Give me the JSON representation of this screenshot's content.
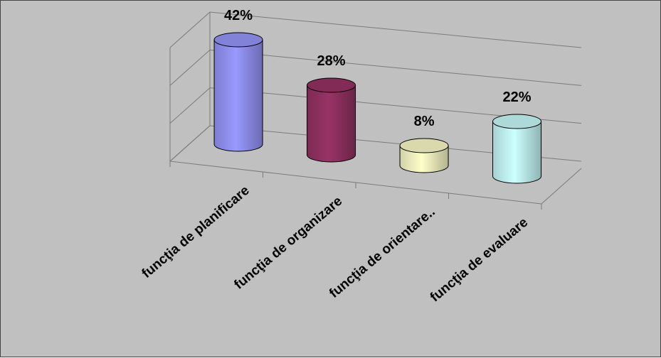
{
  "chart_data": {
    "type": "bar",
    "style": "3d-cylinder",
    "categories": [
      "funcţia de planificare",
      "funcţia de organizare",
      "funcţia de orientare..",
      "funcţia de evaluare"
    ],
    "values": [
      42,
      28,
      8,
      22
    ],
    "value_labels": [
      "42%",
      "28%",
      "8%",
      "22%"
    ],
    "ylim": [
      0,
      60
    ],
    "grid": true,
    "legend": "none",
    "colors": {
      "series": [
        "#9999ff",
        "#993366",
        "#ffffcc",
        "#ccffff"
      ],
      "background": "#c0c0c0",
      "gridline": "#7a7a7a"
    }
  }
}
